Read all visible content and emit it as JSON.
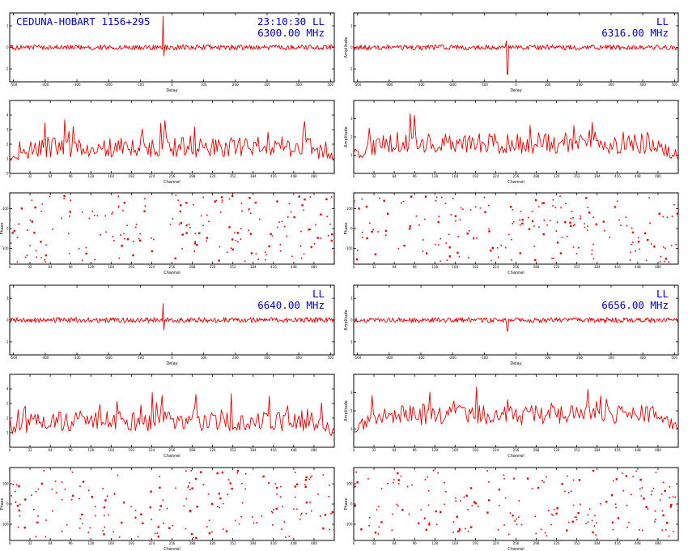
{
  "header": {
    "baseline": "CEDUNA-HOBART 1156+295",
    "time": "23:10:30",
    "pol": "LL"
  },
  "colors": {
    "trace": "#e00000",
    "header_text": "#0000cc",
    "frame": "#000000"
  },
  "chart_data": [
    {
      "id": "lag-6300",
      "type": "line",
      "xlabel": "Delay",
      "ylabel": "",
      "title": "CEDUNA-HOBART 1156+295",
      "freq_label": "6300.00 MHz",
      "time_label": "23:10:30",
      "pol_label": "LL",
      "xlim": [
        -512,
        512
      ],
      "x_ticks": [
        -500,
        -400,
        -300,
        -200,
        -100,
        0,
        100,
        200,
        300,
        400,
        500
      ],
      "y_ticks": [
        -1,
        0,
        1
      ],
      "ylim": [
        -1.6,
        1.6
      ],
      "baseline": 0,
      "noise": 0.12,
      "spikes": [
        {
          "x": -27,
          "y": 1.45
        },
        {
          "x": -25,
          "y": -0.4
        }
      ],
      "points": 400
    },
    {
      "id": "lag-6316",
      "type": "line",
      "xlabel": "Delay",
      "ylabel": "Amplitude",
      "freq_label": "6316.00 MHz",
      "pol_label": "LL",
      "xlim": [
        -512,
        512
      ],
      "x_ticks": [
        -500,
        -400,
        -300,
        -200,
        -100,
        0,
        100,
        200,
        300,
        400,
        500
      ],
      "y_ticks": [
        -1,
        0,
        1
      ],
      "ylim": [
        -1.6,
        1.6
      ],
      "baseline": 0,
      "noise": 0.12,
      "spikes": [
        {
          "x": -27,
          "y": -1.25
        },
        {
          "x": -30,
          "y": 0.3
        }
      ],
      "points": 400
    },
    {
      "id": "amp-6300",
      "type": "line",
      "xlabel": "Channel",
      "ylabel": "",
      "xlim": [
        0,
        512
      ],
      "x_ticks": [
        0,
        32,
        64,
        96,
        128,
        160,
        192,
        224,
        256,
        288,
        320,
        352,
        384,
        416,
        448,
        480
      ],
      "y_ticks": [
        0,
        1,
        2,
        3,
        4
      ],
      "ylim": [
        0,
        5
      ],
      "mean": 1.6,
      "spread": 1.4,
      "points": 230
    },
    {
      "id": "amp-6316",
      "type": "line",
      "xlabel": "Channel",
      "ylabel": "Amplitude",
      "xlim": [
        0,
        512
      ],
      "x_ticks": [
        0,
        32,
        64,
        96,
        128,
        160,
        192,
        224,
        256,
        288,
        320,
        352,
        384,
        416,
        448,
        480
      ],
      "y_ticks": [
        1,
        2,
        3
      ],
      "ylim": [
        0,
        4
      ],
      "mean": 1.5,
      "spread": 1.2,
      "points": 230
    },
    {
      "id": "phs-6300",
      "type": "scatter",
      "xlabel": "Channel",
      "ylabel": "Phase",
      "xlim": [
        0,
        512
      ],
      "x_ticks": [
        0,
        32,
        64,
        96,
        128,
        160,
        192,
        224,
        256,
        288,
        320,
        352,
        384,
        416,
        448,
        480
      ],
      "y_ticks": [
        -100,
        0,
        100
      ],
      "ylim": [
        -180,
        180
      ],
      "points": 190
    },
    {
      "id": "phs-6316",
      "type": "scatter",
      "xlabel": "Channel",
      "ylabel": "Phase",
      "xlim": [
        0,
        512
      ],
      "x_ticks": [
        0,
        32,
        64,
        96,
        128,
        160,
        192,
        224,
        256,
        288,
        320,
        352,
        384,
        416,
        448,
        480
      ],
      "y_ticks": [
        -100,
        0,
        100
      ],
      "ylim": [
        -180,
        180
      ],
      "points": 190
    },
    {
      "id": "lag-6640",
      "type": "line",
      "xlabel": "Delay",
      "ylabel": "",
      "freq_label": "6640.00 MHz",
      "pol_label": "LL",
      "xlim": [
        -512,
        512
      ],
      "x_ticks": [
        -500,
        -400,
        -300,
        -200,
        -100,
        0,
        100,
        200,
        300,
        400,
        500
      ],
      "y_ticks": [
        -1,
        0,
        1
      ],
      "ylim": [
        -1.6,
        1.6
      ],
      "baseline": 0,
      "noise": 0.12,
      "spikes": [
        {
          "x": -27,
          "y": 0.75
        },
        {
          "x": -25,
          "y": -0.45
        }
      ],
      "points": 400
    },
    {
      "id": "lag-6656",
      "type": "line",
      "xlabel": "Delay",
      "ylabel": "Amplitude",
      "freq_label": "6656.00 MHz",
      "pol_label": "LL",
      "xlim": [
        -512,
        512
      ],
      "x_ticks": [
        -500,
        -400,
        -300,
        -200,
        -100,
        0,
        100,
        200,
        300,
        400,
        500
      ],
      "y_ticks": [
        -1,
        0,
        1
      ],
      "ylim": [
        -1.6,
        1.6
      ],
      "baseline": 0,
      "noise": 0.12,
      "spikes": [
        {
          "x": -27,
          "y": -0.5
        }
      ],
      "points": 400
    },
    {
      "id": "amp-6640",
      "type": "line",
      "xlabel": "Channel",
      "ylabel": "",
      "xlim": [
        0,
        512
      ],
      "x_ticks": [
        0,
        32,
        64,
        96,
        128,
        160,
        192,
        224,
        256,
        288,
        320,
        352,
        384,
        416,
        448,
        480
      ],
      "y_ticks": [
        1,
        2,
        3,
        4
      ],
      "ylim": [
        0,
        5
      ],
      "mean": 1.6,
      "spread": 1.4,
      "points": 230
    },
    {
      "id": "amp-6656",
      "type": "line",
      "xlabel": "Channel",
      "ylabel": "Amplitude",
      "xlim": [
        0,
        512
      ],
      "x_ticks": [
        0,
        32,
        64,
        96,
        128,
        160,
        192,
        224,
        256,
        288,
        320,
        352,
        384,
        416,
        448,
        480
      ],
      "y_ticks": [
        1,
        2,
        3
      ],
      "ylim": [
        0,
        4
      ],
      "mean": 1.6,
      "spread": 1.1,
      "points": 230
    },
    {
      "id": "phs-6640",
      "type": "scatter",
      "xlabel": "Channel",
      "ylabel": "Phase",
      "xlim": [
        0,
        512
      ],
      "x_ticks": [
        0,
        32,
        64,
        96,
        128,
        160,
        192,
        224,
        256,
        288,
        320,
        352,
        384,
        416,
        448,
        480
      ],
      "y_ticks": [
        -100,
        0,
        100
      ],
      "ylim": [
        -180,
        180
      ],
      "points": 190
    },
    {
      "id": "phs-6656",
      "type": "scatter",
      "xlabel": "Channel",
      "ylabel": "Phase",
      "xlim": [
        0,
        512
      ],
      "x_ticks": [
        0,
        32,
        64,
        96,
        128,
        160,
        192,
        224,
        256,
        288,
        320,
        352,
        384,
        416,
        448,
        480
      ],
      "y_ticks": [
        -100,
        0,
        100
      ],
      "ylim": [
        -180,
        180
      ],
      "points": 190
    }
  ]
}
